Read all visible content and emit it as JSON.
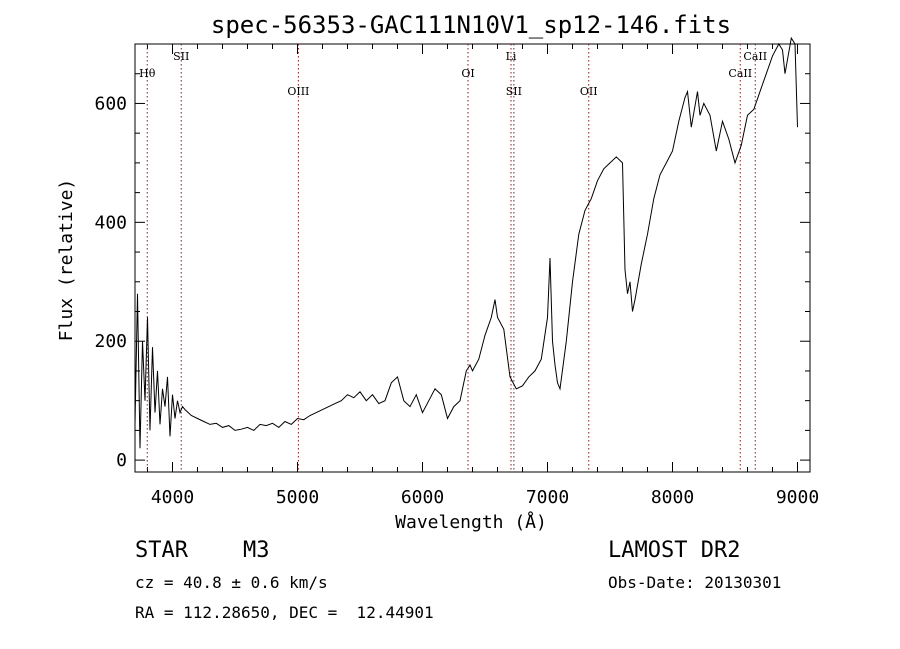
{
  "chart_data": {
    "type": "line",
    "title": "spec-56353-GAC111N10V1_sp12-146.fits",
    "xlabel": "Wavelength (Å)",
    "ylabel": "Flux (relative)",
    "xlim": [
      3700,
      9100
    ],
    "ylim": [
      -20,
      700
    ],
    "x_ticks": [
      4000,
      5000,
      6000,
      7000,
      8000,
      9000
    ],
    "y_ticks": [
      0,
      200,
      400,
      600
    ],
    "grid": false,
    "line_color": "#000000",
    "marker_color": "#8b1a1a",
    "series": [
      {
        "x": [
          3700,
          3720,
          3740,
          3760,
          3780,
          3800,
          3820,
          3840,
          3860,
          3880,
          3900,
          3920,
          3940,
          3960,
          3980,
          4000,
          4020,
          4040,
          4060,
          4080,
          4100,
          4150,
          4200,
          4250,
          4300,
          4350,
          4400,
          4450,
          4500,
          4550,
          4600,
          4650,
          4700,
          4750,
          4800,
          4850,
          4900,
          4950,
          5000,
          5050,
          5100,
          5150,
          5200,
          5250,
          5300,
          5350,
          5400,
          5450,
          5500,
          5550,
          5600,
          5650,
          5700,
          5750,
          5800,
          5850,
          5900,
          5950,
          6000,
          6050,
          6100,
          6150,
          6200,
          6250,
          6300,
          6350,
          6380,
          6400,
          6450,
          6500,
          6550,
          6580,
          6600,
          6650,
          6700,
          6750,
          6800,
          6850,
          6900,
          6950,
          7000,
          7020,
          7040,
          7060,
          7080,
          7100,
          7150,
          7200,
          7250,
          7300,
          7350,
          7400,
          7450,
          7500,
          7550,
          7600,
          7620,
          7640,
          7660,
          7680,
          7700,
          7750,
          7800,
          7850,
          7900,
          7950,
          8000,
          8050,
          8100,
          8120,
          8150,
          8200,
          8220,
          8250,
          8300,
          8350,
          8400,
          8450,
          8500,
          8550,
          8580,
          8600,
          8650,
          8700,
          8750,
          8800,
          8850,
          8880,
          8900,
          8950,
          8980,
          9000
        ],
        "y": [
          60,
          280,
          20,
          200,
          100,
          240,
          50,
          190,
          80,
          150,
          60,
          120,
          90,
          140,
          40,
          110,
          70,
          100,
          80,
          90,
          85,
          75,
          70,
          65,
          60,
          62,
          55,
          58,
          50,
          52,
          55,
          50,
          60,
          58,
          62,
          55,
          65,
          60,
          70,
          68,
          75,
          80,
          85,
          90,
          95,
          100,
          110,
          105,
          115,
          100,
          110,
          95,
          100,
          130,
          140,
          100,
          90,
          110,
          80,
          100,
          120,
          110,
          70,
          90,
          100,
          150,
          160,
          150,
          170,
          210,
          240,
          270,
          240,
          220,
          140,
          120,
          125,
          140,
          150,
          170,
          240,
          340,
          200,
          160,
          130,
          120,
          200,
          300,
          380,
          420,
          440,
          470,
          490,
          500,
          510,
          500,
          320,
          280,
          300,
          250,
          270,
          330,
          380,
          440,
          480,
          500,
          520,
          570,
          610,
          620,
          560,
          620,
          580,
          600,
          580,
          520,
          570,
          540,
          500,
          530,
          560,
          580,
          590,
          620,
          650,
          680,
          700,
          690,
          650,
          710,
          700,
          560
        ]
      }
    ],
    "line_markers": [
      {
        "name": "Hθ",
        "wavelength": 3798,
        "label_row": 1
      },
      {
        "name": "SII",
        "wavelength": 4070,
        "label_row": 0
      },
      {
        "name": "OIII",
        "wavelength": 5007,
        "label_row": 2
      },
      {
        "name": "OI",
        "wavelength": 6364,
        "label_row": 1
      },
      {
        "name": "Li",
        "wavelength": 6708,
        "label_row": 0
      },
      {
        "name": "SII",
        "wavelength": 6731,
        "label_row": 2
      },
      {
        "name": "OII",
        "wavelength": 7330,
        "label_row": 2
      },
      {
        "name": "CaII",
        "wavelength": 8542,
        "label_row": 1
      },
      {
        "name": "CaII",
        "wavelength": 8662,
        "label_row": 0
      }
    ]
  },
  "info": {
    "object_class": "STAR",
    "subclass": "M3",
    "survey": "LAMOST DR2",
    "cz": "cz = 40.8 ± 0.6 km/s",
    "obs_date": "Obs-Date: 20130301",
    "radec": "RA = 112.28650, DEC =  12.44901"
  }
}
